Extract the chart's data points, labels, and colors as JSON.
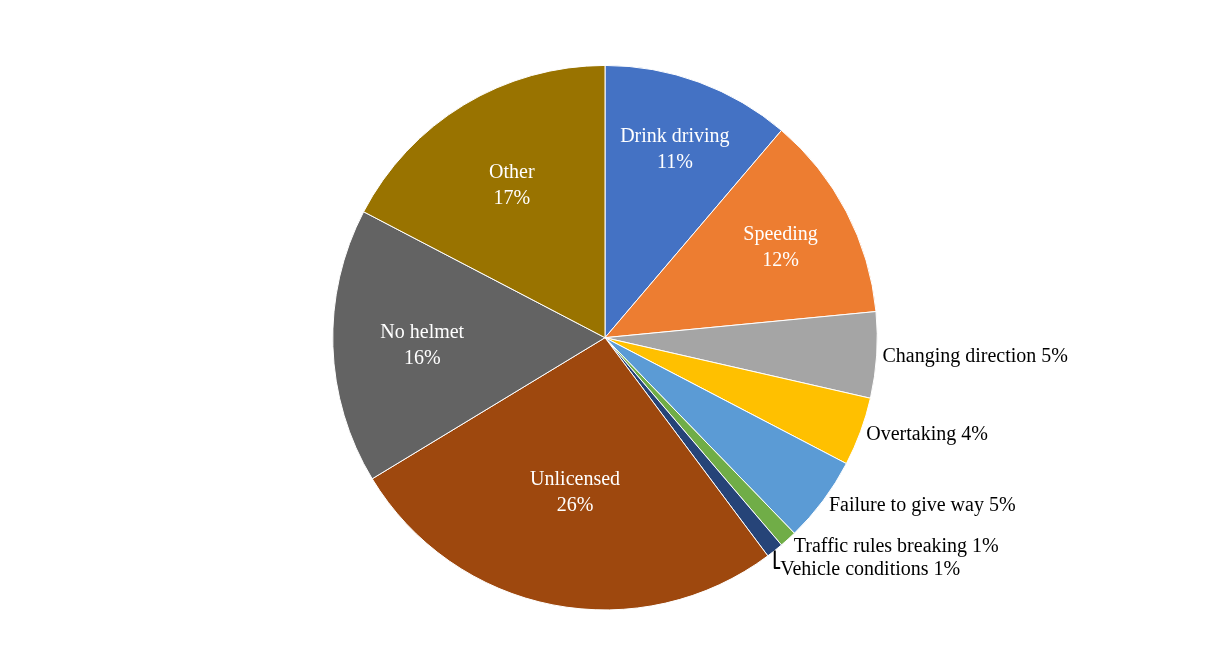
{
  "chart_data": {
    "type": "pie",
    "categories": [
      "Drink driving",
      "Speeding",
      "Changing direction",
      "Overtaking",
      "Failure to give way",
      "Traffic rules breaking",
      "Vehicle conditions",
      "Unlicensed",
      "No helmet",
      "Other"
    ],
    "values": [
      11,
      12,
      5,
      4,
      5,
      1,
      1,
      26,
      16,
      17
    ],
    "value_labels": [
      "11%",
      "12%",
      "5%",
      "4%",
      "5%",
      "1%",
      "1%",
      "26%",
      "16%",
      "17%"
    ],
    "colors": [
      "#4472c4",
      "#ed7d31",
      "#a5a5a5",
      "#ffc000",
      "#5b9bd5",
      "#70ad47",
      "#264478",
      "#9e480e",
      "#636363",
      "#997300"
    ],
    "legend": false
  }
}
